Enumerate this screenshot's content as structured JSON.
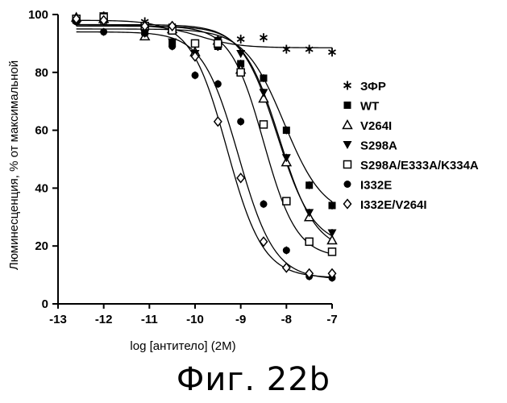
{
  "caption": "Фиг. 22b",
  "chart_data": {
    "type": "scatter",
    "xlabel": "log [антитело] (2M)",
    "ylabel": "Люминесценция, % от максимальной",
    "xlim": [
      -13,
      -7
    ],
    "ylim": [
      0,
      100
    ],
    "x_ticks": [
      "-13",
      "-12",
      "-11",
      "-10",
      "-9",
      "-8",
      "-7"
    ],
    "y_ticks": [
      "0",
      "20",
      "40",
      "60",
      "80",
      "100"
    ],
    "legend_position": "right",
    "grid": false,
    "series": [
      {
        "name": "ЗФР",
        "marker": "asterisk",
        "points": [
          [
            -12.6,
            98.5
          ],
          [
            -12,
            99.5
          ],
          [
            -11.1,
            97.5
          ],
          [
            -10.5,
            96
          ],
          [
            -10,
            86
          ],
          [
            -9.5,
            89
          ],
          [
            -9,
            91.5
          ],
          [
            -8.5,
            92
          ],
          [
            -8,
            88
          ],
          [
            -7.5,
            88
          ],
          [
            -7,
            87
          ]
        ],
        "fit": {
          "top": 96.5,
          "bottom": 88.5,
          "logEC50": -9.9,
          "hill": 1
        }
      },
      {
        "name": "WT",
        "marker": "filled-square",
        "points": [
          [
            -12.6,
            98
          ],
          [
            -12,
            98
          ],
          [
            -11.1,
            94
          ],
          [
            -10.5,
            90
          ],
          [
            -10,
            90
          ],
          [
            -9.5,
            89
          ],
          [
            -9,
            83
          ],
          [
            -8.5,
            78
          ],
          [
            -8,
            60
          ],
          [
            -7.5,
            41
          ],
          [
            -7,
            34
          ]
        ],
        "fit": {
          "top": 95,
          "bottom": 30,
          "logEC50": -8.05,
          "hill": 1
        }
      },
      {
        "name": "V264I",
        "marker": "open-triangle",
        "points": [
          [
            -12.6,
            99
          ],
          [
            -12,
            98.5
          ],
          [
            -11.1,
            92.5
          ],
          [
            -10.5,
            95
          ],
          [
            -10,
            87
          ],
          [
            -9.5,
            91
          ],
          [
            -9,
            81
          ],
          [
            -8.5,
            71
          ],
          [
            -8,
            49
          ],
          [
            -7.5,
            30
          ],
          [
            -7,
            22
          ]
        ],
        "fit": {
          "top": 96,
          "bottom": 18,
          "logEC50": -8.15,
          "hill": 1.1
        }
      },
      {
        "name": "S298A",
        "marker": "filled-triangle-down",
        "points": [
          [
            -12.6,
            98.5
          ],
          [
            -12,
            99.5
          ],
          [
            -11.1,
            93.5
          ],
          [
            -10.5,
            90.5
          ],
          [
            -10,
            86.5
          ],
          [
            -9.5,
            91
          ],
          [
            -9,
            86.5
          ],
          [
            -8.5,
            73
          ],
          [
            -8,
            50.5
          ],
          [
            -7.5,
            31.5
          ],
          [
            -7,
            24.5
          ]
        ],
        "fit": {
          "top": 96.5,
          "bottom": 20,
          "logEC50": -8.2,
          "hill": 1.1
        }
      },
      {
        "name": "S298A/E333A/K334A",
        "marker": "open-square",
        "points": [
          [
            -12.6,
            98.5
          ],
          [
            -12,
            99
          ],
          [
            -11.1,
            96
          ],
          [
            -10.5,
            94.5
          ],
          [
            -10,
            90
          ],
          [
            -9.5,
            90
          ],
          [
            -9,
            80
          ],
          [
            -8.5,
            62
          ],
          [
            -8,
            35.5
          ],
          [
            -7.5,
            21.5
          ],
          [
            -7,
            18
          ]
        ],
        "fit": {
          "top": 96,
          "bottom": 16,
          "logEC50": -8.5,
          "hill": 1.2
        }
      },
      {
        "name": "I332E",
        "marker": "filled-circle",
        "points": [
          [
            -12.6,
            97.5
          ],
          [
            -12,
            94
          ],
          [
            -11.1,
            93.5
          ],
          [
            -10.5,
            89
          ],
          [
            -10,
            79
          ],
          [
            -9.5,
            76
          ],
          [
            -9,
            63
          ],
          [
            -8.5,
            34.5
          ],
          [
            -8,
            18.5
          ],
          [
            -7.5,
            9.5
          ],
          [
            -7,
            9
          ]
        ],
        "fit": {
          "top": 94,
          "bottom": 8.5,
          "logEC50": -9.05,
          "hill": 1.1
        }
      },
      {
        "name": "I332E/V264I",
        "marker": "open-diamond",
        "points": [
          [
            -12.6,
            98.5
          ],
          [
            -12,
            98
          ],
          [
            -11.1,
            96
          ],
          [
            -10.5,
            96
          ],
          [
            -10,
            85.5
          ],
          [
            -9.5,
            63
          ],
          [
            -9,
            43.5
          ],
          [
            -8.5,
            21.5
          ],
          [
            -8,
            12.5
          ],
          [
            -7.5,
            10.5
          ],
          [
            -7,
            10.5
          ]
        ],
        "fit": {
          "top": 98,
          "bottom": 9,
          "logEC50": -9.3,
          "hill": 1.1
        }
      }
    ]
  }
}
